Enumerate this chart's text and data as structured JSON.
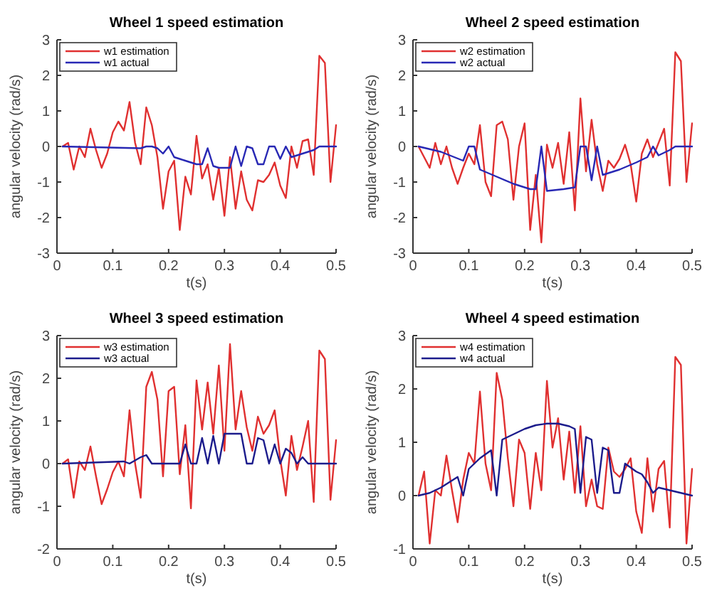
{
  "chart_data": [
    {
      "type": "line",
      "title": "Wheel 1 speed estimation",
      "xlabel": "t(s)",
      "ylabel": "angular velocity (rad/s)",
      "xlim": [
        0,
        0.5
      ],
      "xticks": [
        0,
        0.1,
        0.2,
        0.3,
        0.4,
        0.5
      ],
      "ylim": [
        -3,
        3
      ],
      "yticks": [
        -3,
        -2,
        -1,
        0,
        1,
        2,
        3
      ],
      "legend": "top left",
      "line_style": "solid",
      "x": [
        0.01,
        0.02,
        0.03,
        0.04,
        0.05,
        0.06,
        0.07,
        0.08,
        0.09,
        0.1,
        0.11,
        0.12,
        0.13,
        0.14,
        0.15,
        0.16,
        0.17,
        0.18,
        0.19,
        0.2,
        0.21,
        0.22,
        0.23,
        0.24,
        0.25,
        0.26,
        0.27,
        0.28,
        0.29,
        0.3,
        0.31,
        0.32,
        0.33,
        0.34,
        0.35,
        0.36,
        0.37,
        0.38,
        0.39,
        0.4,
        0.41,
        0.42,
        0.43,
        0.44,
        0.45,
        0.46,
        0.47,
        0.48,
        0.49,
        0.5
      ],
      "series": [
        {
          "name": "w1 estimation",
          "color": "#e03030",
          "values": [
            0,
            0.1,
            -0.65,
            0,
            -0.3,
            0.5,
            -0.1,
            -0.6,
            -0.2,
            0.4,
            0.7,
            0.45,
            1.25,
            0.1,
            -0.5,
            1.1,
            0.6,
            -0.3,
            -1.75,
            -0.7,
            -0.4,
            -2.35,
            -0.85,
            -1.35,
            0.3,
            -0.9,
            -0.5,
            -1.5,
            -0.6,
            -1.95,
            -0.3,
            -1.75,
            -0.7,
            -1.5,
            -1.8,
            -0.95,
            -1.0,
            -0.8,
            -0.45,
            -1.1,
            -1.45,
            0,
            -0.6,
            0.15,
            0.2,
            -0.8,
            2.55,
            2.35,
            -1.0,
            0.6
          ]
        },
        {
          "name": "w1 actual",
          "color": "#2828b4",
          "x": [
            0.01,
            0.15,
            0.16,
            0.17,
            0.18,
            0.19,
            0.2,
            0.21,
            0.22,
            0.23,
            0.24,
            0.25,
            0.26,
            0.27,
            0.28,
            0.29,
            0.3,
            0.31,
            0.32,
            0.33,
            0.34,
            0.35,
            0.36,
            0.37,
            0.38,
            0.39,
            0.4,
            0.41,
            0.42,
            0.43,
            0.44,
            0.45,
            0.46,
            0.47,
            0.5
          ],
          "values": [
            0,
            -0.05,
            0,
            0,
            -0.05,
            -0.2,
            0,
            -0.3,
            -0.35,
            -0.4,
            -0.45,
            -0.5,
            -0.5,
            -0.05,
            -0.55,
            -0.6,
            -0.6,
            -0.6,
            0,
            -0.55,
            0,
            -0.05,
            -0.5,
            -0.5,
            0,
            0,
            -0.35,
            0,
            -0.3,
            -0.25,
            -0.2,
            -0.15,
            -0.1,
            0,
            0
          ]
        }
      ]
    },
    {
      "type": "line",
      "title": "Wheel 2 speed estimation",
      "xlabel": "t(s)",
      "ylabel": "angular velocity (rad/s)",
      "xlim": [
        0,
        0.5
      ],
      "xticks": [
        0,
        0.1,
        0.2,
        0.3,
        0.4,
        0.5
      ],
      "ylim": [
        -3,
        3
      ],
      "yticks": [
        -3,
        -2,
        -1,
        0,
        1,
        2,
        3
      ],
      "legend": "top left",
      "line_style": "solid",
      "x": [
        0.01,
        0.02,
        0.03,
        0.04,
        0.05,
        0.06,
        0.07,
        0.08,
        0.09,
        0.1,
        0.11,
        0.12,
        0.13,
        0.14,
        0.15,
        0.16,
        0.17,
        0.18,
        0.19,
        0.2,
        0.21,
        0.22,
        0.23,
        0.24,
        0.25,
        0.26,
        0.27,
        0.28,
        0.29,
        0.3,
        0.31,
        0.32,
        0.33,
        0.34,
        0.35,
        0.36,
        0.37,
        0.38,
        0.39,
        0.4,
        0.41,
        0.42,
        0.43,
        0.44,
        0.45,
        0.46,
        0.47,
        0.48,
        0.49,
        0.5
      ],
      "series": [
        {
          "name": "w2 estimation",
          "color": "#e03030",
          "values": [
            0,
            -0.3,
            -0.6,
            0.1,
            -0.5,
            0,
            -0.6,
            -1.05,
            -0.6,
            -0.2,
            -0.5,
            0.6,
            -1.0,
            -1.4,
            0.6,
            0.7,
            0.2,
            -1.5,
            0,
            0.65,
            -2.35,
            -0.8,
            -2.7,
            0.05,
            -0.6,
            0.1,
            -1.05,
            0.4,
            -1.8,
            1.35,
            -0.7,
            0.75,
            -0.5,
            -1.25,
            -0.4,
            -0.6,
            -0.35,
            0.05,
            -0.5,
            -1.55,
            -0.2,
            0.2,
            -0.3,
            0.1,
            0.5,
            -1.1,
            2.65,
            2.4,
            -1.0,
            0.65
          ]
        },
        {
          "name": "w2 actual",
          "color": "#2828b4",
          "x": [
            0.01,
            0.05,
            0.09,
            0.1,
            0.11,
            0.12,
            0.15,
            0.18,
            0.21,
            0.22,
            0.23,
            0.24,
            0.27,
            0.29,
            0.3,
            0.31,
            0.32,
            0.33,
            0.34,
            0.37,
            0.4,
            0.42,
            0.43,
            0.44,
            0.46,
            0.47,
            0.5
          ],
          "values": [
            0,
            -0.15,
            -0.4,
            0,
            0,
            -0.65,
            -0.85,
            -1.05,
            -1.2,
            -1.2,
            0,
            -1.25,
            -1.2,
            -1.15,
            0,
            0,
            -0.95,
            0,
            -0.8,
            -0.65,
            -0.45,
            -0.3,
            0,
            -0.25,
            -0.1,
            0,
            0
          ]
        }
      ]
    },
    {
      "type": "line",
      "title": "Wheel 3 speed estimation",
      "xlabel": "t(s)",
      "ylabel": "angular velocity (rad/s)",
      "xlim": [
        0,
        0.5
      ],
      "xticks": [
        0,
        0.1,
        0.2,
        0.3,
        0.4,
        0.5
      ],
      "ylim": [
        -2,
        3
      ],
      "yticks": [
        -2,
        -1,
        0,
        1,
        2,
        3
      ],
      "legend": "top left",
      "line_style": "solid",
      "x": [
        0.01,
        0.02,
        0.03,
        0.04,
        0.05,
        0.06,
        0.07,
        0.08,
        0.09,
        0.1,
        0.11,
        0.12,
        0.13,
        0.14,
        0.15,
        0.16,
        0.17,
        0.18,
        0.19,
        0.2,
        0.21,
        0.22,
        0.23,
        0.24,
        0.25,
        0.26,
        0.27,
        0.28,
        0.29,
        0.3,
        0.31,
        0.32,
        0.33,
        0.34,
        0.35,
        0.36,
        0.37,
        0.38,
        0.39,
        0.4,
        0.41,
        0.42,
        0.43,
        0.44,
        0.45,
        0.46,
        0.47,
        0.48,
        0.49,
        0.5
      ],
      "series": [
        {
          "name": "w3 estimation",
          "color": "#e03030",
          "values": [
            0,
            0.1,
            -0.8,
            0.05,
            -0.15,
            0.4,
            -0.3,
            -0.95,
            -0.6,
            -0.2,
            0.05,
            -0.3,
            1.25,
            0,
            -0.8,
            1.8,
            2.15,
            1.5,
            -0.3,
            1.7,
            1.8,
            -0.25,
            0.9,
            -1.05,
            1.95,
            0.8,
            1.9,
            0.7,
            2.3,
            0.3,
            2.8,
            0.8,
            1.7,
            0.85,
            0.3,
            1.1,
            0.7,
            0.9,
            1.25,
            0.1,
            -0.75,
            0.65,
            -0.15,
            0.4,
            1.0,
            -0.9,
            2.65,
            2.45,
            -0.85,
            0.55
          ]
        },
        {
          "name": "w3 actual",
          "color": "#1c1c8c",
          "x": [
            0.01,
            0.12,
            0.13,
            0.15,
            0.16,
            0.17,
            0.22,
            0.23,
            0.24,
            0.25,
            0.26,
            0.27,
            0.28,
            0.29,
            0.3,
            0.33,
            0.34,
            0.35,
            0.36,
            0.37,
            0.38,
            0.39,
            0.4,
            0.41,
            0.42,
            0.43,
            0.44,
            0.45,
            0.5
          ],
          "values": [
            0,
            0.05,
            0,
            0.15,
            0.2,
            0,
            0,
            0.45,
            0,
            0,
            0.6,
            0,
            0.65,
            0,
            0.7,
            0.7,
            0,
            0,
            0.6,
            0.55,
            0,
            0.45,
            0,
            0.35,
            0.25,
            0,
            0.15,
            0,
            0
          ]
        }
      ]
    },
    {
      "type": "line",
      "title": "Wheel 4 speed estimation",
      "xlabel": "t(s)",
      "ylabel": "angular velocity (rad/s)",
      "xlim": [
        0,
        0.5
      ],
      "xticks": [
        0,
        0.1,
        0.2,
        0.3,
        0.4,
        0.5
      ],
      "ylim": [
        -1,
        3
      ],
      "yticks": [
        -1,
        0,
        1,
        2,
        3
      ],
      "legend": "top left",
      "line_style": "solid",
      "x": [
        0.01,
        0.02,
        0.03,
        0.04,
        0.05,
        0.06,
        0.07,
        0.08,
        0.09,
        0.1,
        0.11,
        0.12,
        0.13,
        0.14,
        0.15,
        0.16,
        0.17,
        0.18,
        0.19,
        0.2,
        0.21,
        0.22,
        0.23,
        0.24,
        0.25,
        0.26,
        0.27,
        0.28,
        0.29,
        0.3,
        0.31,
        0.32,
        0.33,
        0.34,
        0.35,
        0.36,
        0.37,
        0.38,
        0.39,
        0.4,
        0.41,
        0.42,
        0.43,
        0.44,
        0.45,
        0.46,
        0.47,
        0.48,
        0.49,
        0.5
      ],
      "series": [
        {
          "name": "w4 estimation",
          "color": "#e03030",
          "values": [
            0,
            0.45,
            -0.9,
            0.1,
            0,
            0.75,
            0.1,
            -0.5,
            0.3,
            0.8,
            0.6,
            1.95,
            0.6,
            0.1,
            2.3,
            1.8,
            0.7,
            -0.2,
            1.05,
            0.8,
            -0.25,
            0.8,
            0.1,
            2.15,
            0.9,
            1.45,
            0.3,
            1.2,
            0.05,
            1.3,
            -0.2,
            0.3,
            -0.2,
            -0.25,
            0.9,
            0.45,
            0.35,
            0.5,
            0.7,
            -0.3,
            -0.7,
            0.7,
            -0.3,
            0.5,
            0.65,
            -0.6,
            2.6,
            2.45,
            -0.9,
            0.5
          ]
        },
        {
          "name": "w4 actual",
          "color": "#1c1c8c",
          "x": [
            0.01,
            0.03,
            0.05,
            0.08,
            0.09,
            0.1,
            0.12,
            0.14,
            0.15,
            0.16,
            0.18,
            0.2,
            0.22,
            0.24,
            0.26,
            0.28,
            0.29,
            0.3,
            0.31,
            0.32,
            0.33,
            0.34,
            0.35,
            0.36,
            0.37,
            0.38,
            0.4,
            0.41,
            0.42,
            0.43,
            0.44,
            0.46,
            0.48,
            0.5
          ],
          "values": [
            0,
            0.05,
            0.15,
            0.35,
            0,
            0.5,
            0.7,
            0.85,
            0,
            1.05,
            1.15,
            1.25,
            1.32,
            1.35,
            1.35,
            1.3,
            1.25,
            0.05,
            1.1,
            1.05,
            0.05,
            0.9,
            0.85,
            0.05,
            0.05,
            0.6,
            0.45,
            0.4,
            0.25,
            0.05,
            0.15,
            0.1,
            0.05,
            0
          ]
        }
      ]
    }
  ]
}
